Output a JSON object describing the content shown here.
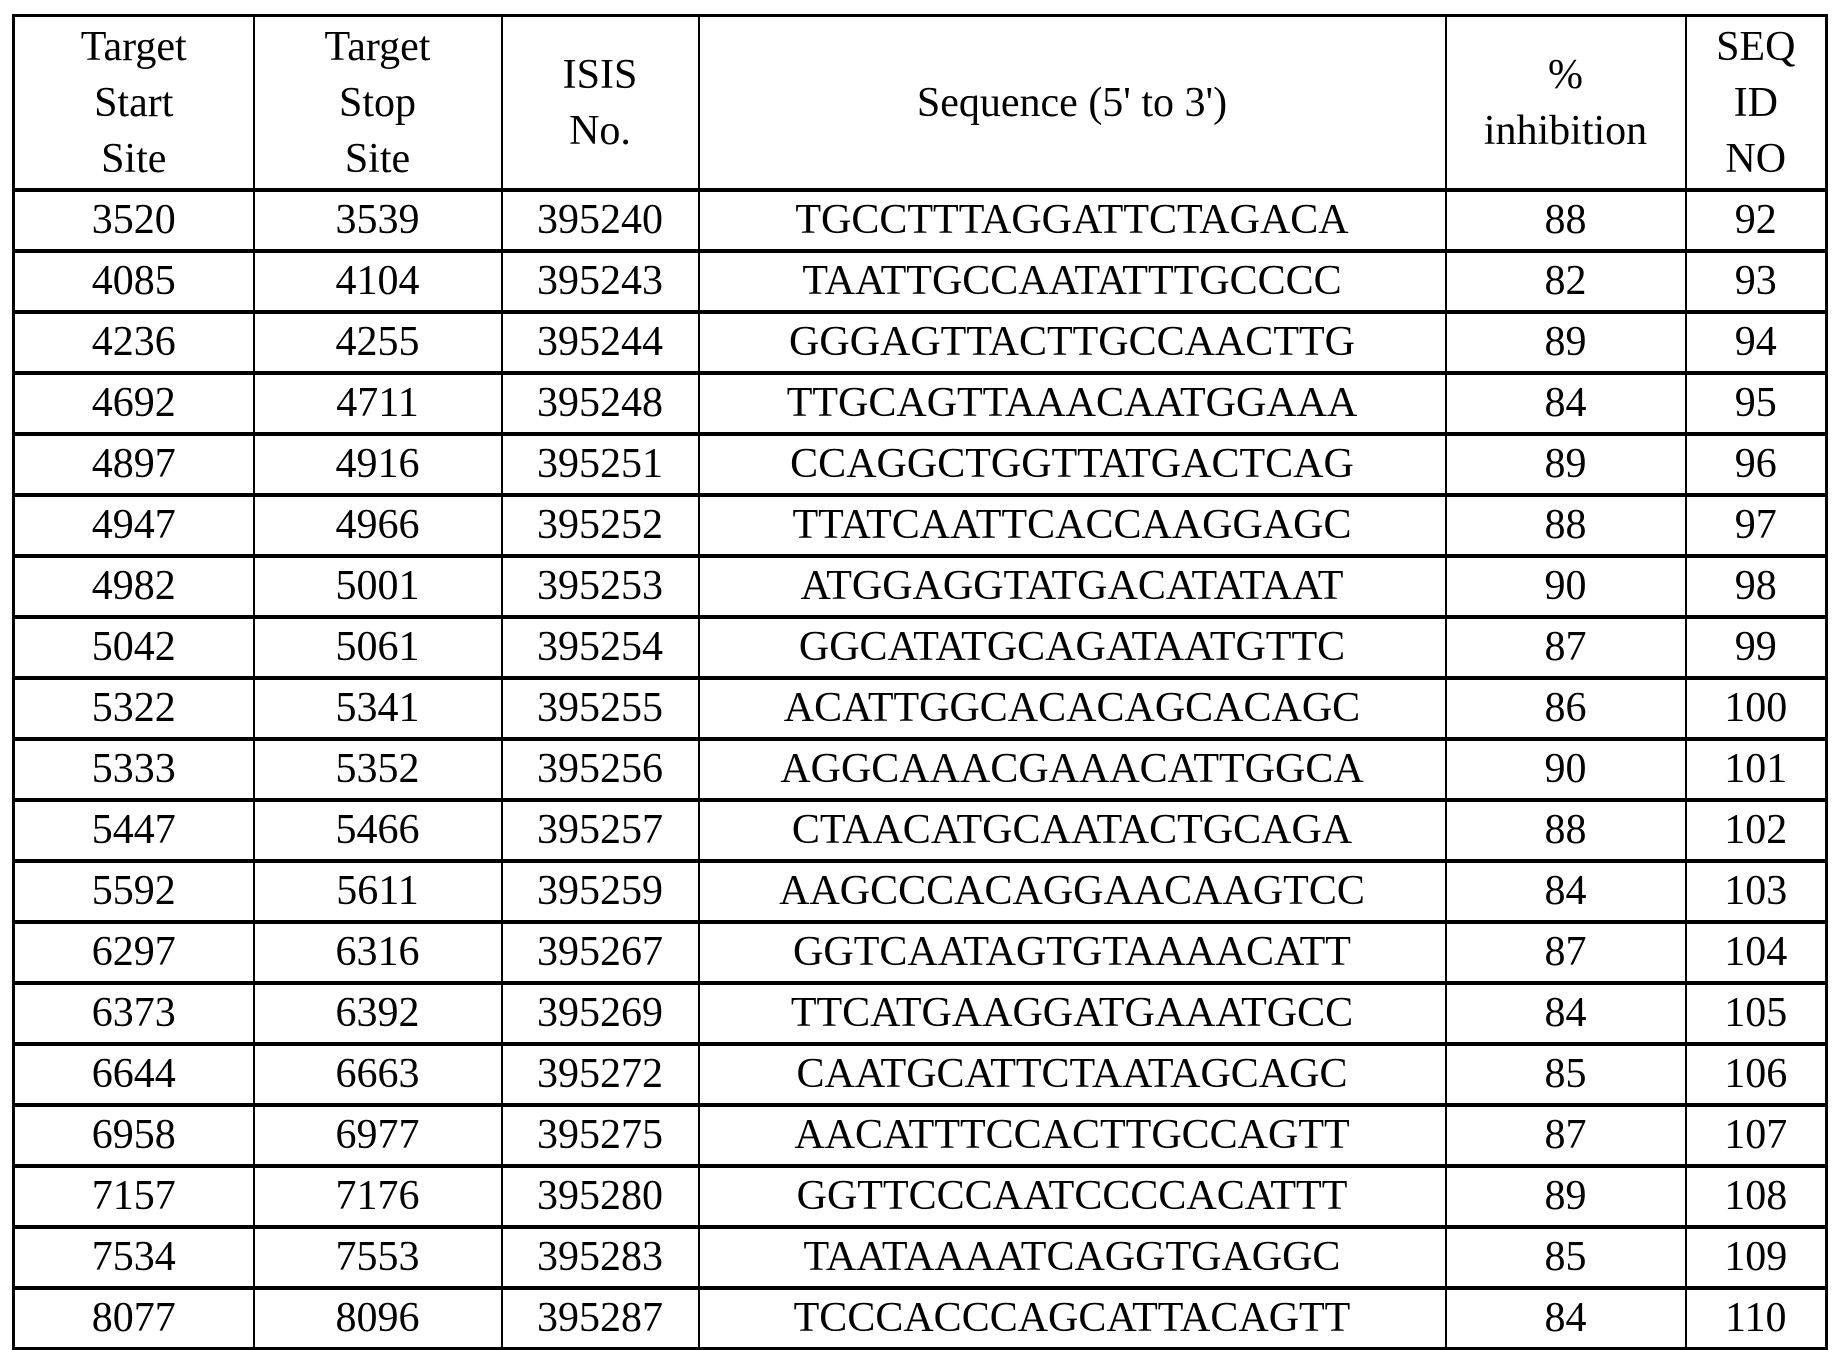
{
  "table": {
    "headers": [
      "Target Start Site",
      "Target Stop Site",
      "ISIS No.",
      "Sequence (5' to 3')",
      "% inhibition",
      "SEQ ID NO"
    ],
    "header_lines": [
      [
        "Target",
        "Start",
        "Site"
      ],
      [
        "Target",
        "Stop",
        "Site"
      ],
      [
        "ISIS",
        "No."
      ],
      [
        "Sequence (5' to 3')"
      ],
      [
        "%",
        "inhibition"
      ],
      [
        "SEQ",
        "ID",
        "NO"
      ]
    ],
    "rows": [
      [
        "3520",
        "3539",
        "395240",
        "TGCCTTTAGGATTCTAGACA",
        "88",
        "92"
      ],
      [
        "4085",
        "4104",
        "395243",
        "TAATTGCCAATATTTGCCCC",
        "82",
        "93"
      ],
      [
        "4236",
        "4255",
        "395244",
        "GGGAGTTACTTGCCAACTTG",
        "89",
        "94"
      ],
      [
        "4692",
        "4711",
        "395248",
        "TTGCAGTTAAACAATGGAAA",
        "84",
        "95"
      ],
      [
        "4897",
        "4916",
        "395251",
        "CCAGGCTGGTTATGACTCAG",
        "89",
        "96"
      ],
      [
        "4947",
        "4966",
        "395252",
        "TTATCAATTCACCAAGGAGC",
        "88",
        "97"
      ],
      [
        "4982",
        "5001",
        "395253",
        "ATGGAGGTATGACATATAAT",
        "90",
        "98"
      ],
      [
        "5042",
        "5061",
        "395254",
        "GGCATATGCAGATAATGTTC",
        "87",
        "99"
      ],
      [
        "5322",
        "5341",
        "395255",
        "ACATTGGCACACAGCACAGC",
        "86",
        "100"
      ],
      [
        "5333",
        "5352",
        "395256",
        "AGGCAAACGAAACATTGGCA",
        "90",
        "101"
      ],
      [
        "5447",
        "5466",
        "395257",
        "CTAACATGCAATACTGCAGA",
        "88",
        "102"
      ],
      [
        "5592",
        "5611",
        "395259",
        "AAGCCCACAGGAACAAGTCC",
        "84",
        "103"
      ],
      [
        "6297",
        "6316",
        "395267",
        "GGTCAATAGTGTAAAACATT",
        "87",
        "104"
      ],
      [
        "6373",
        "6392",
        "395269",
        "TTCATGAAGGATGAAATGCC",
        "84",
        "105"
      ],
      [
        "6644",
        "6663",
        "395272",
        "CAATGCATTCTAATAGCAGC",
        "85",
        "106"
      ],
      [
        "6958",
        "6977",
        "395275",
        "AACATTTCCACTTGCCAGTT",
        "87",
        "107"
      ],
      [
        "7157",
        "7176",
        "395280",
        "GGTTCCCAATCCCCACATTT",
        "89",
        "108"
      ],
      [
        "7534",
        "7553",
        "395283",
        "TAATAAAATCAGGTGAGGC",
        "85",
        "109"
      ],
      [
        "8077",
        "8096",
        "395287",
        "TCCCACCCAGCATTACAGTT",
        "84",
        "110"
      ]
    ]
  }
}
